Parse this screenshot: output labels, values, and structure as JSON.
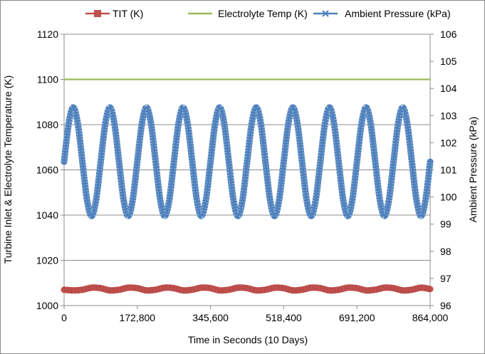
{
  "chart_data": {
    "type": "line",
    "xlabel": "Time in Seconds (10 Days)",
    "ylabel_left": "Turbine Inlet & Electrolyte Temperature (K)",
    "ylabel_right": "Ambient  Pressure (kPa)",
    "xlim": [
      0,
      864000
    ],
    "ylim_left": [
      1000,
      1120
    ],
    "ylim_right": [
      96,
      106
    ],
    "x_ticks": [
      "0",
      "172,800",
      "345,600",
      "518,400",
      "691,200",
      "864,000"
    ],
    "x_tick_values": [
      0,
      172800,
      345600,
      518400,
      691200,
      864000
    ],
    "y_left_ticks": [
      "1000",
      "1020",
      "1040",
      "1060",
      "1080",
      "1100",
      "1120"
    ],
    "y_left_tick_values": [
      1000,
      1020,
      1040,
      1060,
      1080,
      1100,
      1120
    ],
    "y_right_ticks": [
      "96",
      "97",
      "98",
      "99",
      "100",
      "101",
      "102",
      "103",
      "104",
      "105",
      "106"
    ],
    "y_right_tick_values": [
      96,
      97,
      98,
      99,
      100,
      101,
      102,
      103,
      104,
      105,
      106
    ],
    "grid": "horizontal",
    "legend_position": "top",
    "series": [
      {
        "name": "TIT (K)",
        "axis": "left",
        "color": "#c0504d",
        "marker": "square",
        "x": [
          0,
          21600,
          43200,
          64800,
          86400,
          108000,
          129600,
          151200,
          172800,
          194400,
          216000,
          237600,
          259200,
          280800,
          302400,
          324000,
          345600,
          367200,
          388800,
          410400,
          432000,
          453600,
          475200,
          496800,
          518400,
          540000,
          561600,
          583200,
          604800,
          626400,
          648000,
          669600,
          691200,
          712800,
          734400,
          756000,
          777600,
          799200,
          820800,
          842400,
          864000
        ],
        "y": [
          1007,
          1006.7,
          1007,
          1007.9,
          1007.7,
          1006.7,
          1007,
          1007.9,
          1007.7,
          1006.7,
          1007,
          1007.9,
          1007.7,
          1006.7,
          1007,
          1007.9,
          1007.7,
          1006.7,
          1007,
          1007.9,
          1007.7,
          1006.7,
          1007,
          1007.9,
          1007.7,
          1006.7,
          1007,
          1007.9,
          1007.7,
          1006.7,
          1007,
          1007.9,
          1007.7,
          1006.7,
          1007,
          1007.9,
          1007.7,
          1006.7,
          1007,
          1007.9,
          1007.3
        ]
      },
      {
        "name": "Electrolyte Temp (K)",
        "axis": "left",
        "color": "#9bbb59",
        "marker": "none",
        "x": [
          0,
          864000
        ],
        "y": [
          1100,
          1100
        ]
      },
      {
        "name": "Ambient Pressure (kPa)",
        "axis": "right",
        "color": "#4f81bd",
        "marker": "x",
        "x": [
          0,
          10800,
          21600,
          32400,
          43200,
          54000,
          64800,
          75600,
          86400,
          97200,
          108000,
          118800,
          129600,
          140400,
          151200,
          162000,
          172800,
          183600,
          194400,
          205200,
          216000,
          226800,
          237600,
          248400,
          259200,
          270000,
          280800,
          291600,
          302400,
          313200,
          324000,
          334800,
          345600,
          356400,
          367200,
          378000,
          388800,
          399600,
          410400,
          421200,
          432000,
          442800,
          453600,
          464400,
          475200,
          486000,
          496800,
          507600,
          518400,
          529200,
          540000,
          550800,
          561600,
          572400,
          583200,
          594000,
          604800,
          615600,
          626400,
          637200,
          648000,
          658800,
          669600,
          680400,
          691200,
          702000,
          712800,
          723600,
          734400,
          745200,
          756000,
          766800,
          777600,
          788400,
          799200,
          810000,
          820800,
          831600,
          842400,
          853200,
          864000
        ],
        "y": [
          101.3,
          102.7,
          103.3,
          102.7,
          101.3,
          99.9,
          99.3,
          99.9,
          101.3,
          102.7,
          103.3,
          102.7,
          101.3,
          99.9,
          99.3,
          99.9,
          101.3,
          102.7,
          103.3,
          102.7,
          101.3,
          99.9,
          99.3,
          99.9,
          101.3,
          102.7,
          103.3,
          102.7,
          101.3,
          99.9,
          99.3,
          99.9,
          101.3,
          102.7,
          103.3,
          102.7,
          101.3,
          99.9,
          99.3,
          99.9,
          101.3,
          102.7,
          103.3,
          102.7,
          101.3,
          99.9,
          99.3,
          99.9,
          101.3,
          102.7,
          103.3,
          102.7,
          101.3,
          99.9,
          99.3,
          99.9,
          101.3,
          102.7,
          103.3,
          102.7,
          101.3,
          99.9,
          99.3,
          99.9,
          101.3,
          102.7,
          103.3,
          102.7,
          101.3,
          99.9,
          99.3,
          99.9,
          101.3,
          102.7,
          103.3,
          102.7,
          101.3,
          99.9,
          99.3,
          99.9,
          101.3
        ]
      }
    ]
  }
}
